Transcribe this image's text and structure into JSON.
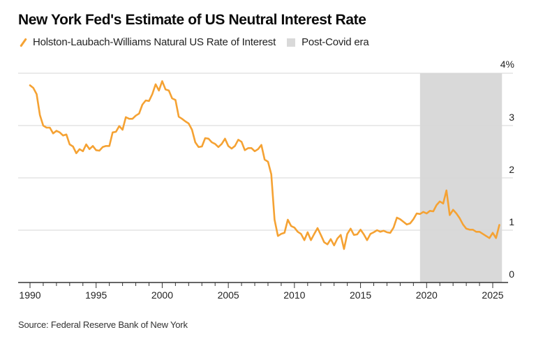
{
  "title": "New York Fed's Estimate of US Neutral Interest Rate",
  "legend": {
    "series_label": "Holston-Laubach-Williams Natural US Rate of Interest",
    "shading_label": "Post-Covid era"
  },
  "source": "Source: Federal Reserve Bank of New York",
  "colors": {
    "line": "#f5a233",
    "shading": "#d9d9d9",
    "grid": "#d6d6d6",
    "axis": "#333333"
  },
  "chart_data": {
    "type": "line",
    "title": "New York Fed's Estimate of US Neutral Interest Rate",
    "xlabel": "",
    "ylabel": "",
    "xlim": [
      1989.8,
      2026.3
    ],
    "ylim": [
      0,
      4
    ],
    "grid": true,
    "y_axis_side": "right",
    "legend_position": "top-left",
    "x_ticks": [
      1990,
      1995,
      2000,
      2005,
      2010,
      2015,
      2020,
      2025
    ],
    "x_tick_labels": [
      "1990",
      "1995",
      "2000",
      "2005",
      "2010",
      "2015",
      "2020",
      "2025"
    ],
    "y_ticks": [
      0,
      1,
      2,
      3,
      4
    ],
    "y_tick_labels": [
      "0",
      "1",
      "2",
      "3",
      "4%"
    ],
    "shaded_regions": [
      {
        "name": "Post-Covid era",
        "x_start": 2019.5,
        "x_end": 2025.7
      }
    ],
    "series": [
      {
        "name": "Holston-Laubach-Williams Natural US Rate of Interest",
        "x": [
          1990.0,
          1990.25,
          1990.5,
          1990.75,
          1991.0,
          1991.25,
          1991.5,
          1991.75,
          1992.0,
          1992.25,
          1992.5,
          1992.75,
          1993.0,
          1993.25,
          1993.5,
          1993.75,
          1994.0,
          1994.25,
          1994.5,
          1994.75,
          1995.0,
          1995.25,
          1995.5,
          1995.75,
          1996.0,
          1996.25,
          1996.5,
          1996.75,
          1997.0,
          1997.25,
          1997.5,
          1997.75,
          1998.0,
          1998.25,
          1998.5,
          1998.75,
          1999.0,
          1999.25,
          1999.5,
          1999.75,
          2000.0,
          2000.25,
          2000.5,
          2000.75,
          2001.0,
          2001.25,
          2001.5,
          2001.75,
          2002.0,
          2002.25,
          2002.5,
          2002.75,
          2003.0,
          2003.25,
          2003.5,
          2003.75,
          2004.0,
          2004.25,
          2004.5,
          2004.75,
          2005.0,
          2005.25,
          2005.5,
          2005.75,
          2006.0,
          2006.25,
          2006.5,
          2006.75,
          2007.0,
          2007.25,
          2007.5,
          2007.75,
          2008.0,
          2008.25,
          2008.5,
          2008.75,
          2009.0,
          2009.25,
          2009.5,
          2009.75,
          2010.0,
          2010.25,
          2010.5,
          2010.75,
          2011.0,
          2011.25,
          2011.5,
          2011.75,
          2012.0,
          2012.25,
          2012.5,
          2012.75,
          2013.0,
          2013.25,
          2013.5,
          2013.75,
          2014.0,
          2014.25,
          2014.5,
          2014.75,
          2015.0,
          2015.25,
          2015.5,
          2015.75,
          2016.0,
          2016.25,
          2016.5,
          2016.75,
          2017.0,
          2017.25,
          2017.5,
          2017.75,
          2018.0,
          2018.25,
          2018.5,
          2018.75,
          2019.0,
          2019.25,
          2019.5,
          2019.75,
          2020.0,
          2020.25,
          2020.5,
          2020.75,
          2021.0,
          2021.25,
          2021.5,
          2021.75,
          2022.0,
          2022.25,
          2022.5,
          2022.75,
          2023.0,
          2023.25,
          2023.5,
          2023.75,
          2024.0,
          2024.25,
          2024.5,
          2024.75,
          2025.0,
          2025.25,
          2025.5
        ],
        "values": [
          3.77,
          3.72,
          3.6,
          3.2,
          3.0,
          2.96,
          2.96,
          2.85,
          2.9,
          2.87,
          2.81,
          2.83,
          2.64,
          2.6,
          2.47,
          2.55,
          2.51,
          2.64,
          2.55,
          2.61,
          2.53,
          2.52,
          2.59,
          2.61,
          2.61,
          2.87,
          2.88,
          2.99,
          2.92,
          3.16,
          3.13,
          3.13,
          3.19,
          3.23,
          3.4,
          3.48,
          3.47,
          3.6,
          3.79,
          3.67,
          3.85,
          3.69,
          3.67,
          3.52,
          3.49,
          3.17,
          3.13,
          3.08,
          3.04,
          2.92,
          2.68,
          2.59,
          2.6,
          2.76,
          2.75,
          2.68,
          2.65,
          2.59,
          2.65,
          2.75,
          2.61,
          2.56,
          2.61,
          2.73,
          2.69,
          2.53,
          2.57,
          2.57,
          2.51,
          2.55,
          2.63,
          2.35,
          2.31,
          2.07,
          1.2,
          0.89,
          0.93,
          0.95,
          1.2,
          1.08,
          1.05,
          0.97,
          0.93,
          0.81,
          0.96,
          0.81,
          0.93,
          1.04,
          0.91,
          0.77,
          0.73,
          0.83,
          0.71,
          0.84,
          0.91,
          0.64,
          0.93,
          1.03,
          0.91,
          0.92,
          1.01,
          0.92,
          0.81,
          0.93,
          0.96,
          1.0,
          0.97,
          0.99,
          0.96,
          0.95,
          1.05,
          1.24,
          1.21,
          1.16,
          1.11,
          1.13,
          1.21,
          1.32,
          1.31,
          1.35,
          1.32,
          1.37,
          1.36,
          1.48,
          1.55,
          1.51,
          1.76,
          1.29,
          1.39,
          1.32,
          1.23,
          1.11,
          1.03,
          1.01,
          1.01,
          0.97,
          0.97,
          0.93,
          0.89,
          0.85,
          0.95,
          0.85,
          1.1
        ]
      }
    ]
  }
}
